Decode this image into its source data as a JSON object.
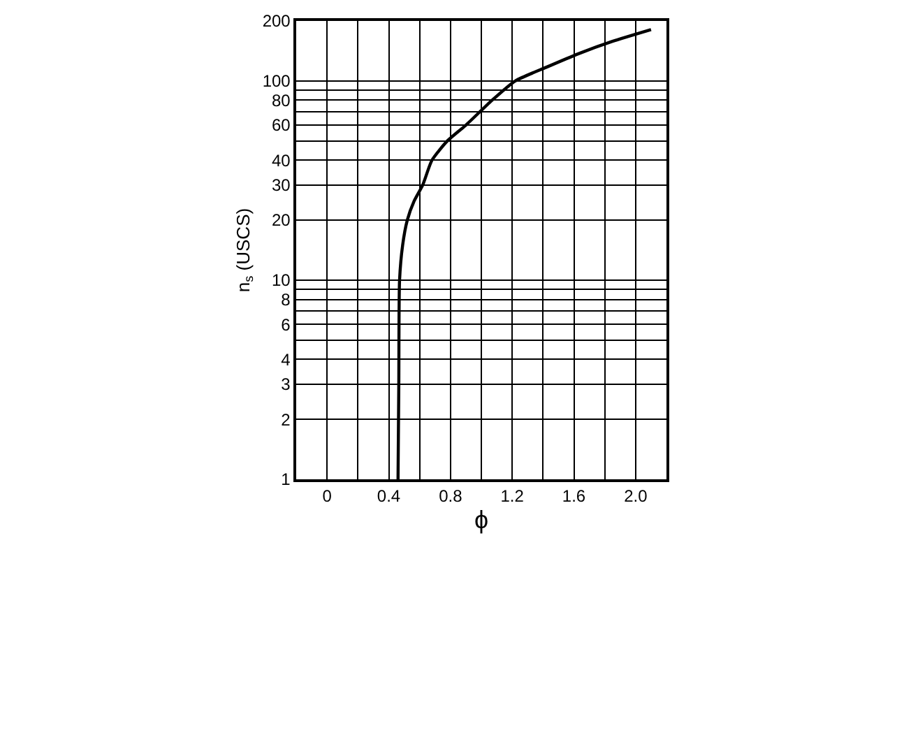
{
  "chart_data": {
    "type": "line",
    "xlabel": "ϕ",
    "ylabel": "n$_{s}$ (USCS)",
    "x": [
      0.46,
      0.465,
      0.47,
      0.49,
      0.52,
      0.565,
      0.62,
      0.68,
      0.78,
      0.9,
      1.07,
      1.22,
      1.42,
      1.63,
      1.85,
      2.1
    ],
    "series": [
      {
        "color": "#000000",
        "values": [
          1,
          3,
          10,
          15,
          20,
          25,
          30,
          40,
          50,
          60,
          80,
          100,
          117,
          137,
          158,
          181
        ]
      }
    ],
    "log": "y",
    "grid": true,
    "marker": "none",
    "line_style": "solid",
    "xlim": [
      -0.2,
      2.2
    ],
    "xticks": [
      {
        "value": -0.2,
        "label": null
      },
      0,
      {
        "value": 0.2,
        "label": null
      },
      0.4,
      {
        "value": 0.6,
        "label": null
      },
      0.8,
      {
        "value": 1.0,
        "label": null
      },
      1.2,
      {
        "value": 1.4,
        "label": null
      },
      1.6,
      {
        "value": 1.8,
        "label": null
      },
      {
        "value": 2.0,
        "label": "2.0"
      },
      {
        "value": 2.2,
        "label": null
      }
    ],
    "ylim": [
      1,
      200
    ],
    "yticks": [
      1,
      2,
      3,
      4,
      {
        "value": 5,
        "label": null
      },
      6,
      {
        "value": 7,
        "label": null
      },
      8,
      {
        "value": 9,
        "label": null
      },
      10,
      20,
      30,
      40,
      {
        "value": 50,
        "label": null
      },
      60,
      {
        "value": 70,
        "label": null
      },
      80,
      {
        "value": 90,
        "label": null
      },
      100,
      200
    ]
  }
}
